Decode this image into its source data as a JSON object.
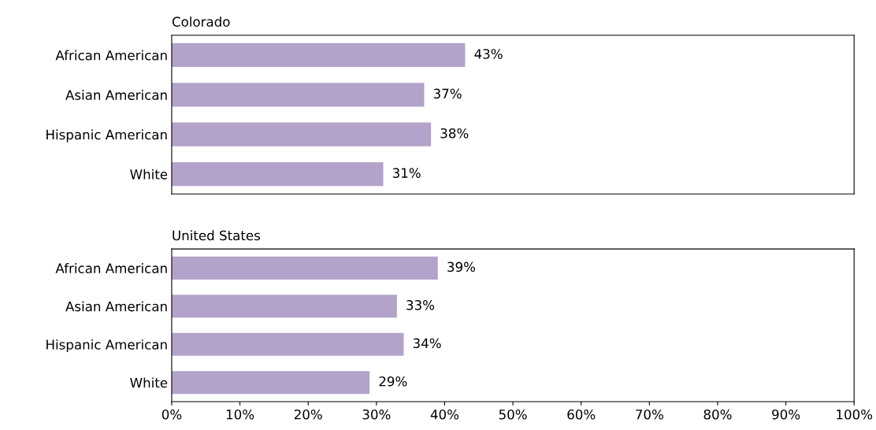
{
  "chart_data": [
    {
      "type": "bar",
      "orientation": "horizontal",
      "title": "Colorado",
      "categories": [
        "African American",
        "Asian American",
        "Hispanic American",
        "White"
      ],
      "values": [
        43,
        37,
        38,
        31
      ],
      "value_labels": [
        "43%",
        "37%",
        "38%",
        "31%"
      ],
      "color": "#b3a2ca",
      "xlim": [
        0,
        100
      ],
      "tick_labels": "y",
      "grid": false,
      "legend": false
    },
    {
      "type": "bar",
      "orientation": "horizontal",
      "title": "United States",
      "categories": [
        "African American",
        "Asian American",
        "Hispanic American",
        "White"
      ],
      "values": [
        39,
        33,
        34,
        29
      ],
      "value_labels": [
        "39%",
        "33%",
        "34%",
        "29%"
      ],
      "color": "#b3a2ca",
      "xlim": [
        0,
        100
      ],
      "xticks": [
        {
          "value": 0,
          "label": "0%"
        },
        {
          "value": 10,
          "label": "10%"
        },
        {
          "value": 20,
          "label": "20%"
        },
        {
          "value": 30,
          "label": "30%"
        },
        {
          "value": 40,
          "label": "40%"
        },
        {
          "value": 50,
          "label": "50%"
        },
        {
          "value": 60,
          "label": "60%"
        },
        {
          "value": 70,
          "label": "70%"
        },
        {
          "value": 80,
          "label": "80%"
        },
        {
          "value": 90,
          "label": "90%"
        },
        {
          "value": 100,
          "label": "100%"
        }
      ],
      "grid": false,
      "legend": false
    }
  ]
}
